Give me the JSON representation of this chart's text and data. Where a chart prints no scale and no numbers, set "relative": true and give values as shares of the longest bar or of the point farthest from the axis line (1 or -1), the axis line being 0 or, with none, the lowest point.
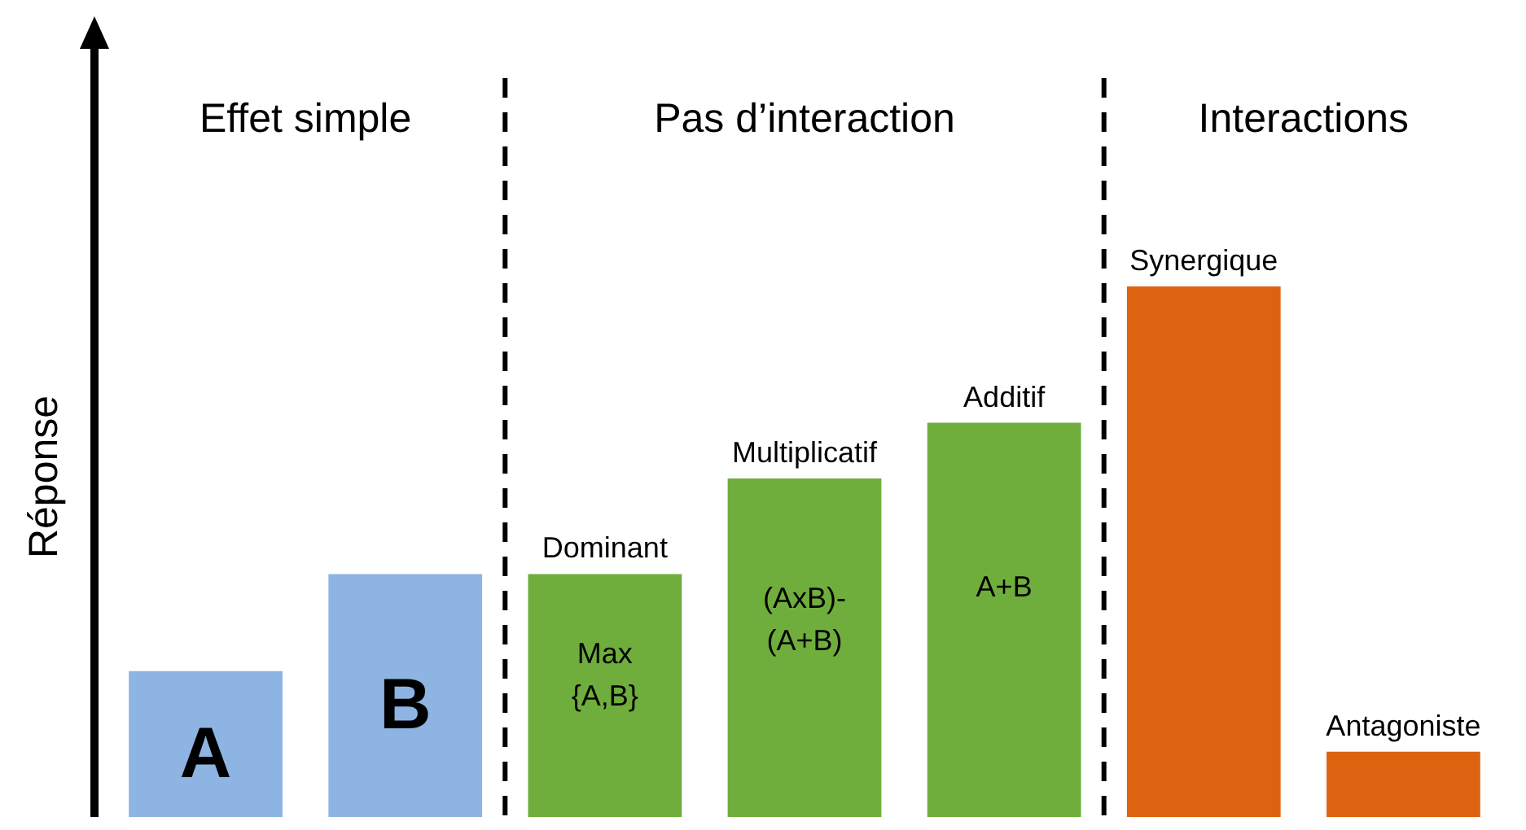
{
  "chart_data": {
    "type": "bar",
    "relative": true,
    "ylabel": "Réponse",
    "categories": [
      "A",
      "B",
      "Dominant",
      "Multiplicatif",
      "Additif",
      "Synergique",
      "Antagoniste"
    ],
    "values": [
      0.275,
      0.458,
      0.458,
      0.638,
      0.743,
      1,
      0.123
    ],
    "colors": [
      "#8eb4e3",
      "#8eb4e3",
      "#6fae3c",
      "#6fae3c",
      "#6fae3c",
      "#dc6410",
      "#dc6410"
    ],
    "annotations": [
      "Effet simple",
      "Pas d’interaction",
      "Interactions",
      "Max {A,B}",
      "(AxB)- (A+B)",
      "A+B"
    ],
    "legend": false
  }
}
